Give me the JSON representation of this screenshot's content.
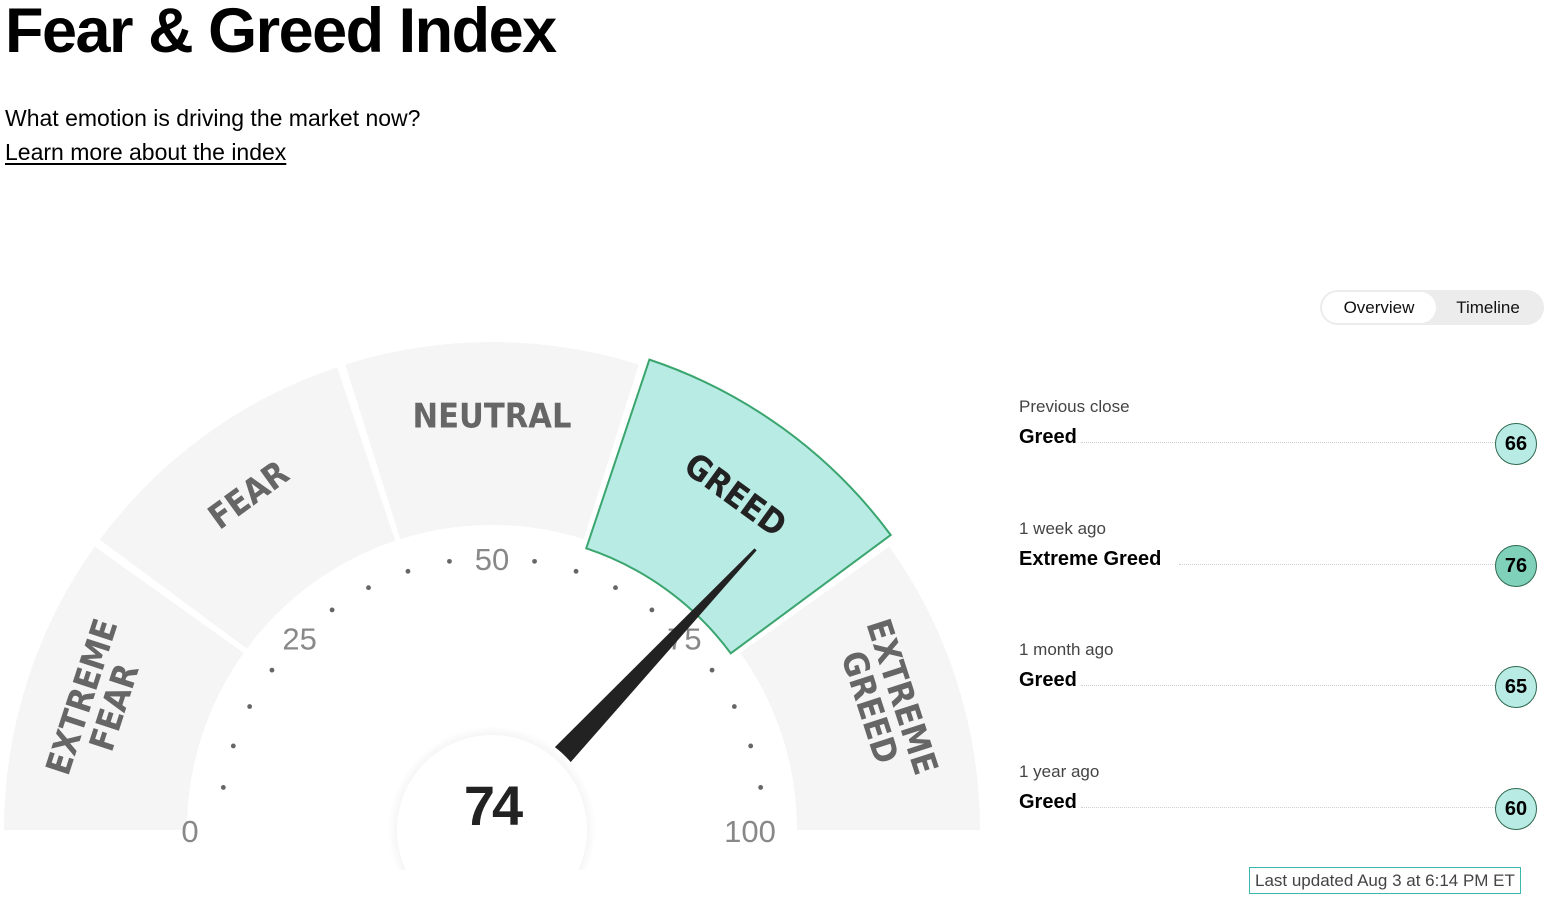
{
  "header": {
    "title": "Fear & Greed Index",
    "subtitle": "What emotion is driving the market now?",
    "learn_more": "Learn more about the index"
  },
  "toggle": {
    "overview": "Overview",
    "timeline": "Timeline",
    "selected": "Overview"
  },
  "gauge": {
    "value": 74,
    "value_label": "74",
    "segments": [
      {
        "line1": "EXTREME",
        "line2": "FEAR"
      },
      {
        "line1": "FEAR"
      },
      {
        "line1": "NEUTRAL"
      },
      {
        "line1": "GREED",
        "active": true
      },
      {
        "line1": "EXTREME",
        "line2": "GREED"
      }
    ],
    "ticks": [
      "0",
      "25",
      "50",
      "75",
      "100"
    ],
    "colors": {
      "segment": "#f5f5f5",
      "active_fill": "#b8ebe4",
      "active_border": "#3aa56e",
      "needle": "#222222"
    }
  },
  "history": [
    {
      "when": "Previous close",
      "label": "Greed",
      "value": "66",
      "badge_color": "#b8ebe4"
    },
    {
      "when": "1 week ago",
      "label": "Extreme Greed",
      "value": "76",
      "badge_color": "#7fd1b9"
    },
    {
      "when": "1 month ago",
      "label": "Greed",
      "value": "65",
      "badge_color": "#b8ebe4"
    },
    {
      "when": "1 year ago",
      "label": "Greed",
      "value": "60",
      "badge_color": "#b8ebe4"
    }
  ],
  "last_updated": "Last updated Aug 3 at 6:14 PM ET"
}
